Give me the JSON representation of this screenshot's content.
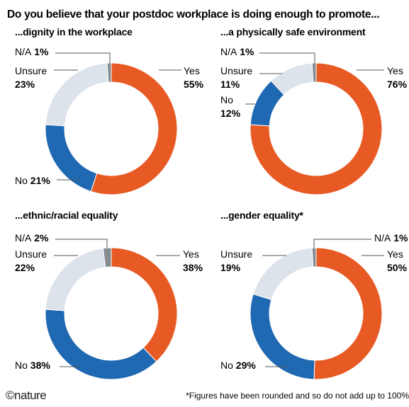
{
  "title": "Do you believe that your postdoc workplace is doing enough to promote...",
  "footnote": "*Figures have been rounded and so do not add up to 100%",
  "logo": "nature",
  "colors": {
    "Yes": "#e85a24",
    "No": "#1f68b2",
    "Unsure": "#dde3ea",
    "N/A": "#868c92"
  },
  "chart_data": [
    {
      "type": "pie",
      "title": "...dignity in the workplace",
      "slices": [
        {
          "name": "Yes",
          "value": 55
        },
        {
          "name": "No",
          "value": 21
        },
        {
          "name": "Unsure",
          "value": 23
        },
        {
          "name": "N/A",
          "value": 1
        }
      ]
    },
    {
      "type": "pie",
      "title": "...a physically safe environment",
      "slices": [
        {
          "name": "Yes",
          "value": 76
        },
        {
          "name": "No",
          "value": 12
        },
        {
          "name": "Unsure",
          "value": 11
        },
        {
          "name": "N/A",
          "value": 1
        }
      ]
    },
    {
      "type": "pie",
      "title": "...ethnic/racial equality",
      "slices": [
        {
          "name": "Yes",
          "value": 38
        },
        {
          "name": "No",
          "value": 38
        },
        {
          "name": "Unsure",
          "value": 22
        },
        {
          "name": "N/A",
          "value": 2
        }
      ]
    },
    {
      "type": "pie",
      "title": "...gender equality*",
      "slices": [
        {
          "name": "Yes",
          "value": 50
        },
        {
          "name": "No",
          "value": 29
        },
        {
          "name": "Unsure",
          "value": 19
        },
        {
          "name": "N/A",
          "value": 1
        }
      ]
    }
  ]
}
